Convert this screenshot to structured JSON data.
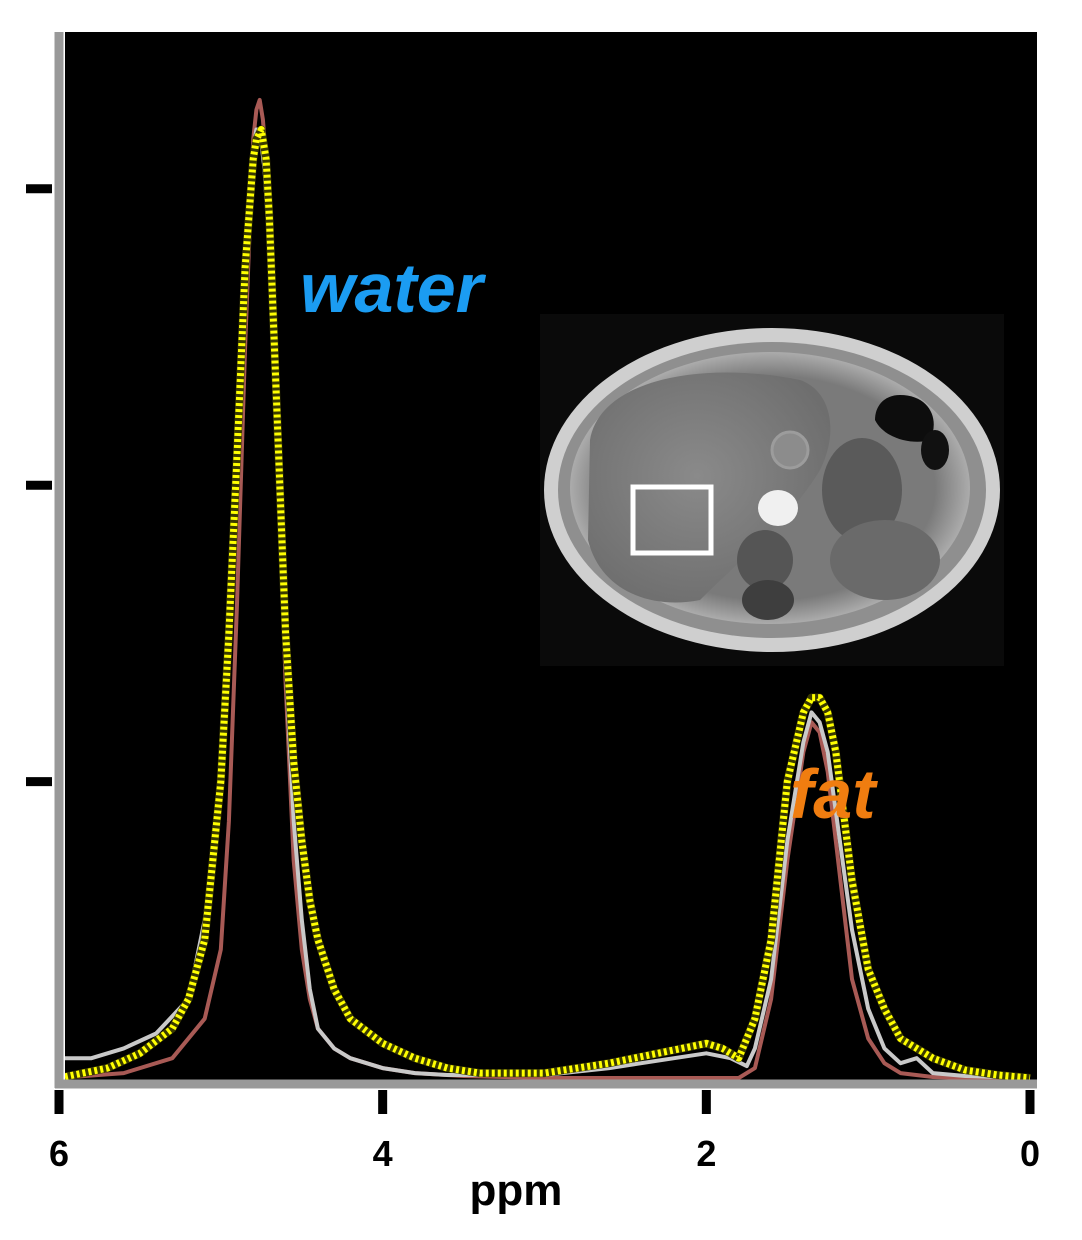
{
  "chart_data": {
    "type": "line",
    "xlabel": "ppm",
    "x_reversed": true,
    "xlim": [
      6,
      0
    ],
    "ylim": [
      0,
      1
    ],
    "x_ticks": [
      6,
      4,
      2,
      0
    ],
    "x_tick_labels": [
      "6",
      "4",
      "2",
      "0"
    ],
    "y_ticks": [
      0.3,
      0.6,
      0.9
    ],
    "y_tick_labels": [],
    "grid": false,
    "background": "#000000",
    "axis_color": "#999999",
    "annotations": [
      {
        "text": "water",
        "color": "#1b9cf2",
        "x": 4.0,
        "y": 0.75
      },
      {
        "text": "fat",
        "color": "#f07d10",
        "x": 1.2,
        "y": 0.25
      }
    ],
    "series": [
      {
        "color": "#ffff00",
        "style": "dotted",
        "x": [
          6.0,
          5.7,
          5.5,
          5.3,
          5.2,
          5.1,
          5.0,
          4.95,
          4.9,
          4.85,
          4.8,
          4.78,
          4.75,
          4.72,
          4.7,
          4.65,
          4.6,
          4.55,
          4.5,
          4.45,
          4.4,
          4.3,
          4.2,
          4.0,
          3.8,
          3.6,
          3.4,
          3.0,
          2.6,
          2.3,
          2.0,
          1.9,
          1.8,
          1.7,
          1.6,
          1.5,
          1.4,
          1.35,
          1.3,
          1.25,
          1.2,
          1.1,
          1.0,
          0.9,
          0.8,
          0.6,
          0.4,
          0.2,
          0.0
        ],
        "y": [
          0.0,
          0.01,
          0.025,
          0.05,
          0.08,
          0.14,
          0.3,
          0.45,
          0.63,
          0.82,
          0.93,
          0.95,
          0.96,
          0.93,
          0.87,
          0.66,
          0.45,
          0.32,
          0.24,
          0.18,
          0.14,
          0.09,
          0.06,
          0.035,
          0.02,
          0.01,
          0.005,
          0.005,
          0.015,
          0.025,
          0.035,
          0.03,
          0.02,
          0.06,
          0.14,
          0.3,
          0.37,
          0.385,
          0.385,
          0.37,
          0.33,
          0.2,
          0.11,
          0.07,
          0.04,
          0.02,
          0.008,
          0.003,
          0.0
        ]
      },
      {
        "color": "#c9c9c9",
        "style": "solid",
        "x": [
          6.0,
          5.8,
          5.6,
          5.4,
          5.2,
          5.1,
          5.0,
          4.95,
          4.9,
          4.85,
          4.8,
          4.78,
          4.76,
          4.73,
          4.7,
          4.65,
          4.6,
          4.55,
          4.5,
          4.45,
          4.4,
          4.3,
          4.2,
          4.0,
          3.8,
          3.6,
          3.0,
          2.6,
          2.2,
          2.0,
          1.85,
          1.75,
          1.7,
          1.6,
          1.5,
          1.4,
          1.35,
          1.3,
          1.25,
          1.2,
          1.1,
          1.0,
          0.9,
          0.8,
          0.7,
          0.6,
          0.4,
          0.2,
          0.0
        ],
        "y": [
          0.02,
          0.02,
          0.03,
          0.045,
          0.08,
          0.16,
          0.29,
          0.45,
          0.62,
          0.84,
          0.94,
          0.96,
          0.96,
          0.92,
          0.84,
          0.67,
          0.42,
          0.26,
          0.16,
          0.09,
          0.05,
          0.03,
          0.02,
          0.01,
          0.005,
          0.003,
          0.003,
          0.01,
          0.02,
          0.025,
          0.02,
          0.012,
          0.03,
          0.1,
          0.24,
          0.34,
          0.37,
          0.36,
          0.33,
          0.27,
          0.15,
          0.07,
          0.03,
          0.015,
          0.02,
          0.005,
          0.002,
          0.001,
          0.0
        ]
      },
      {
        "color": "#a85a55",
        "style": "solid",
        "x": [
          6.0,
          5.6,
          5.3,
          5.1,
          5.0,
          4.95,
          4.9,
          4.85,
          4.8,
          4.78,
          4.76,
          4.74,
          4.72,
          4.7,
          4.65,
          4.6,
          4.55,
          4.5,
          4.45,
          4.4,
          4.3,
          4.2,
          4.0,
          3.8,
          3.5,
          3.0,
          2.5,
          2.0,
          1.8,
          1.7,
          1.6,
          1.5,
          1.4,
          1.35,
          1.3,
          1.25,
          1.2,
          1.1,
          1.0,
          0.9,
          0.8,
          0.6,
          0.4,
          0.0
        ],
        "y": [
          0.0,
          0.005,
          0.02,
          0.06,
          0.13,
          0.26,
          0.48,
          0.74,
          0.95,
          0.98,
          0.99,
          0.97,
          0.93,
          0.86,
          0.65,
          0.4,
          0.22,
          0.13,
          0.08,
          0.05,
          0.03,
          0.02,
          0.01,
          0.005,
          0.002,
          0.0,
          0.0,
          0.0,
          0.0,
          0.01,
          0.08,
          0.22,
          0.33,
          0.36,
          0.35,
          0.31,
          0.24,
          0.1,
          0.04,
          0.015,
          0.005,
          0.001,
          0.0,
          0.0
        ]
      }
    ]
  },
  "inset_image": {
    "kind": "axial abdominal MRI",
    "roi_box_color": "#ffffff"
  }
}
